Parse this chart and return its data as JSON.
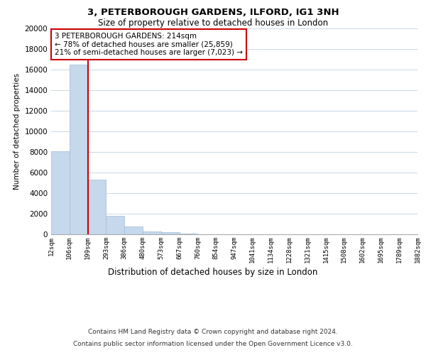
{
  "title": "3, PETERBOROUGH GARDENS, ILFORD, IG1 3NH",
  "subtitle": "Size of property relative to detached houses in London",
  "xlabel": "Distribution of detached houses by size in London",
  "ylabel": "Number of detached properties",
  "bins": [
    "12sqm",
    "106sqm",
    "199sqm",
    "293sqm",
    "386sqm",
    "480sqm",
    "573sqm",
    "667sqm",
    "760sqm",
    "854sqm",
    "947sqm",
    "1041sqm",
    "1134sqm",
    "1228sqm",
    "1321sqm",
    "1415sqm",
    "1508sqm",
    "1602sqm",
    "1695sqm",
    "1789sqm",
    "1882sqm"
  ],
  "bar_values": [
    8100,
    16500,
    5300,
    1800,
    750,
    300,
    200,
    100,
    0,
    0,
    0,
    0,
    0,
    0,
    0,
    0,
    0,
    0,
    0,
    0
  ],
  "bar_color": "#c5d8ec",
  "bar_edge_color": "#a0bcd8",
  "property_line_x": 2,
  "property_line_color": "#cc0000",
  "annotation_title": "3 PETERBOROUGH GARDENS: 214sqm",
  "annotation_line1": "← 78% of detached houses are smaller (25,859)",
  "annotation_line2": "21% of semi-detached houses are larger (7,023) →",
  "annotation_box_color": "#ffffff",
  "annotation_box_edge": "#cc0000",
  "ylim": [
    0,
    20000
  ],
  "yticks": [
    0,
    2000,
    4000,
    6000,
    8000,
    10000,
    12000,
    14000,
    16000,
    18000,
    20000
  ],
  "footer_line1": "Contains HM Land Registry data © Crown copyright and database right 2024.",
  "footer_line2": "Contains public sector information licensed under the Open Government Licence v3.0.",
  "background_color": "#ffffff",
  "grid_color": "#c8d8e8"
}
